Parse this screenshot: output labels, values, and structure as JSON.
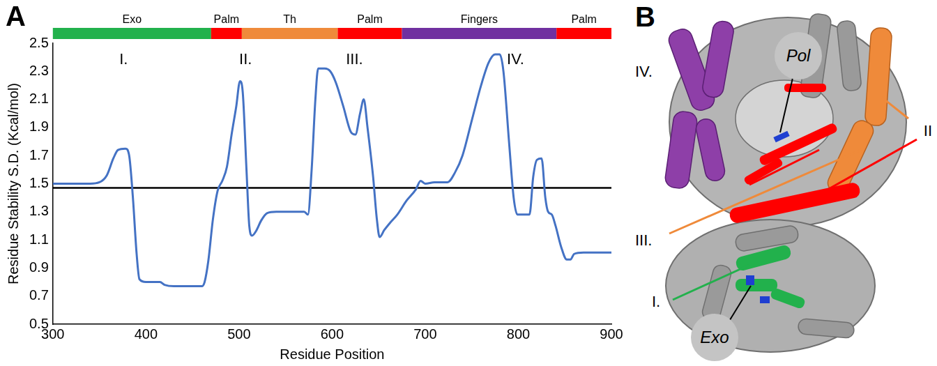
{
  "chart_data": {
    "type": "line",
    "panel_letter": "A",
    "x_label": "Residue Position",
    "y_label": "Residue Stability S.D. (Kcal/mol)",
    "color": "#4472c4",
    "x": [
      300,
      340,
      350,
      358,
      365,
      370,
      378,
      382,
      386,
      390,
      393,
      400,
      415,
      420,
      430,
      450,
      460,
      463,
      467,
      472,
      477,
      482,
      487,
      492,
      497,
      501,
      504,
      508,
      511,
      514,
      518,
      524,
      530,
      540,
      560,
      570,
      574,
      578,
      582,
      585,
      592,
      598,
      604,
      612,
      620,
      625,
      630,
      634,
      638,
      644,
      648,
      651,
      656,
      662,
      670,
      680,
      690,
      695,
      700,
      710,
      724,
      732,
      740,
      750,
      760,
      768,
      775,
      780,
      784,
      790,
      795,
      799,
      808,
      812,
      816,
      820,
      825,
      829,
      832,
      836,
      840,
      846,
      852,
      856,
      860,
      870,
      900
    ],
    "values": [
      1.5,
      1.5,
      1.51,
      1.56,
      1.68,
      1.74,
      1.75,
      1.7,
      1.4,
      1.0,
      0.82,
      0.8,
      0.8,
      0.78,
      0.77,
      0.77,
      0.77,
      0.8,
      0.95,
      1.25,
      1.45,
      1.52,
      1.62,
      1.85,
      2.05,
      2.23,
      2.15,
      1.6,
      1.2,
      1.13,
      1.16,
      1.24,
      1.29,
      1.3,
      1.3,
      1.3,
      1.28,
      1.6,
      2.1,
      2.32,
      2.32,
      2.3,
      2.22,
      2.05,
      1.87,
      1.85,
      2.0,
      2.1,
      1.9,
      1.55,
      1.25,
      1.12,
      1.17,
      1.22,
      1.28,
      1.38,
      1.46,
      1.52,
      1.5,
      1.51,
      1.51,
      1.58,
      1.7,
      1.95,
      2.2,
      2.36,
      2.42,
      2.42,
      2.3,
      1.8,
      1.4,
      1.28,
      1.28,
      1.28,
      1.55,
      1.67,
      1.68,
      1.4,
      1.3,
      1.28,
      1.2,
      1.05,
      0.96,
      0.96,
      1.0,
      1.01,
      1.01
    ],
    "reference_line": {
      "y": 1.47,
      "color": "#000000"
    },
    "domains": [
      {
        "label": "Exo",
        "start": 300,
        "end": 470,
        "color": "#22b14c"
      },
      {
        "label": "Palm",
        "start": 470,
        "end": 503,
        "color": "#ff0000"
      },
      {
        "label": "Th",
        "start": 503,
        "end": 606,
        "color": "#ef8a3a"
      },
      {
        "label": "Palm",
        "start": 606,
        "end": 675,
        "color": "#ff0000"
      },
      {
        "label": "Fingers",
        "start": 675,
        "end": 841,
        "color": "#7030a0"
      },
      {
        "label": "Palm",
        "start": 841,
        "end": 900,
        "color": "#ff0000"
      }
    ],
    "regions": [
      {
        "label": "I.",
        "x": 376,
        "y": 2.38
      },
      {
        "label": "II.",
        "x": 507,
        "y": 2.38
      },
      {
        "label": "III.",
        "x": 624,
        "y": 2.38
      },
      {
        "label": "IV.",
        "x": 797,
        "y": 2.38
      }
    ],
    "xlim": [
      300,
      900
    ],
    "xticks": [
      300,
      400,
      500,
      600,
      700,
      800,
      900
    ],
    "ylim": [
      0.5,
      2.5
    ],
    "yticks": [
      0.5,
      0.7,
      0.9,
      1.1,
      1.3,
      1.5,
      1.7,
      1.9,
      2.1,
      2.3,
      2.5
    ],
    "grid": false
  },
  "panel_b": {
    "letter": "B",
    "labels": [
      {
        "label": "IV.",
        "color": "#8e3fa8"
      },
      {
        "label": "II",
        "color": "#ef8a3a"
      },
      {
        "label": "III.",
        "color": "#ef8a3a"
      },
      {
        "label": "I.",
        "color": "#22b14c"
      }
    ],
    "sites": [
      "Pol",
      "Exo"
    ]
  }
}
